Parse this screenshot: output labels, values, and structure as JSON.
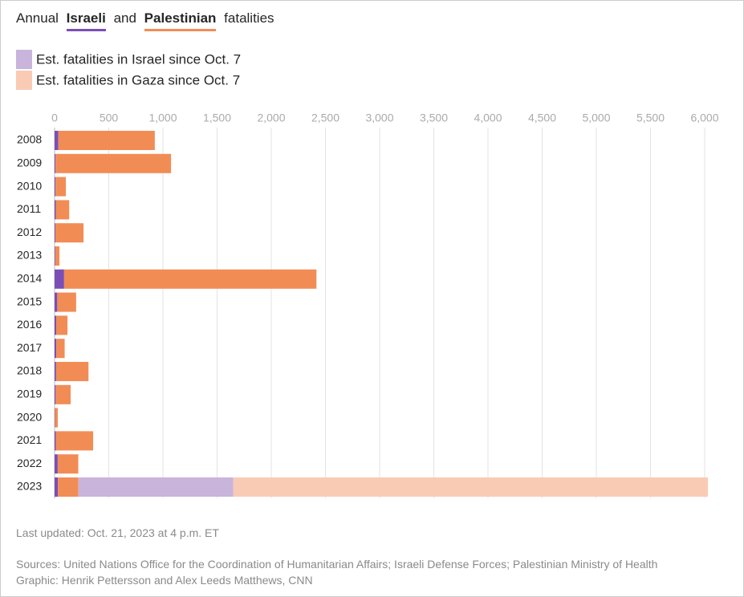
{
  "chart_data": {
    "type": "stacked-bar-horizontal",
    "title_start": "Annual",
    "title_middle": "and",
    "title_end": "fatalities",
    "categories": [
      "2008",
      "2009",
      "2010",
      "2011",
      "2012",
      "2013",
      "2014",
      "2015",
      "2016",
      "2017",
      "2018",
      "2019",
      "2020",
      "2021",
      "2022",
      "2023"
    ],
    "series": [
      {
        "name": "Israeli",
        "color": "#7b4fb5",
        "values": [
          35,
          9,
          9,
          11,
          7,
          6,
          88,
          25,
          15,
          16,
          14,
          10,
          3,
          11,
          29,
          30
        ]
      },
      {
        "name": "Palestinian",
        "color": "#f28c55",
        "values": [
          890,
          1066,
          95,
          124,
          260,
          39,
          2329,
          174,
          104,
          77,
          299,
          138,
          27,
          345,
          190,
          190
        ]
      },
      {
        "name": "Est. fatalities in Israel since Oct. 7",
        "color": "#c9b4dc",
        "values": [
          null,
          null,
          null,
          null,
          null,
          null,
          null,
          null,
          null,
          null,
          null,
          null,
          null,
          null,
          null,
          1430
        ]
      },
      {
        "name": "Est. fatalities in Gaza since Oct. 7",
        "color": "#f9cbb5",
        "values": [
          null,
          null,
          null,
          null,
          null,
          null,
          null,
          null,
          null,
          null,
          null,
          null,
          null,
          null,
          null,
          4380
        ]
      }
    ],
    "xlim": [
      0,
      6000
    ],
    "xticks": [
      0,
      500,
      {
        "value": 1000,
        "label": "1,000"
      },
      {
        "value": 1500,
        "label": "1,500"
      },
      {
        "value": 2000,
        "label": "2,000"
      },
      {
        "value": 2500,
        "label": "2,500"
      },
      {
        "value": 3000,
        "label": "3,000"
      },
      {
        "value": 3500,
        "label": "3,500"
      },
      {
        "value": 4000,
        "label": "4,000"
      },
      {
        "value": 4500,
        "label": "4,500"
      },
      {
        "value": 5000,
        "label": "5,000"
      },
      {
        "value": 5500,
        "label": "5,500"
      },
      {
        "value": 6000,
        "label": "6,000"
      }
    ],
    "grid": true,
    "updated": "Last updated: Oct. 21, 2023 at 4 p.m. ET",
    "sources": "Sources: United Nations Office for the Coordination of Humanitarian Affairs; Israeli Defense Forces; Palestinian Ministry of Health",
    "credit": "Graphic: Henrik Pettersson and Alex Leeds Matthews, CNN"
  }
}
